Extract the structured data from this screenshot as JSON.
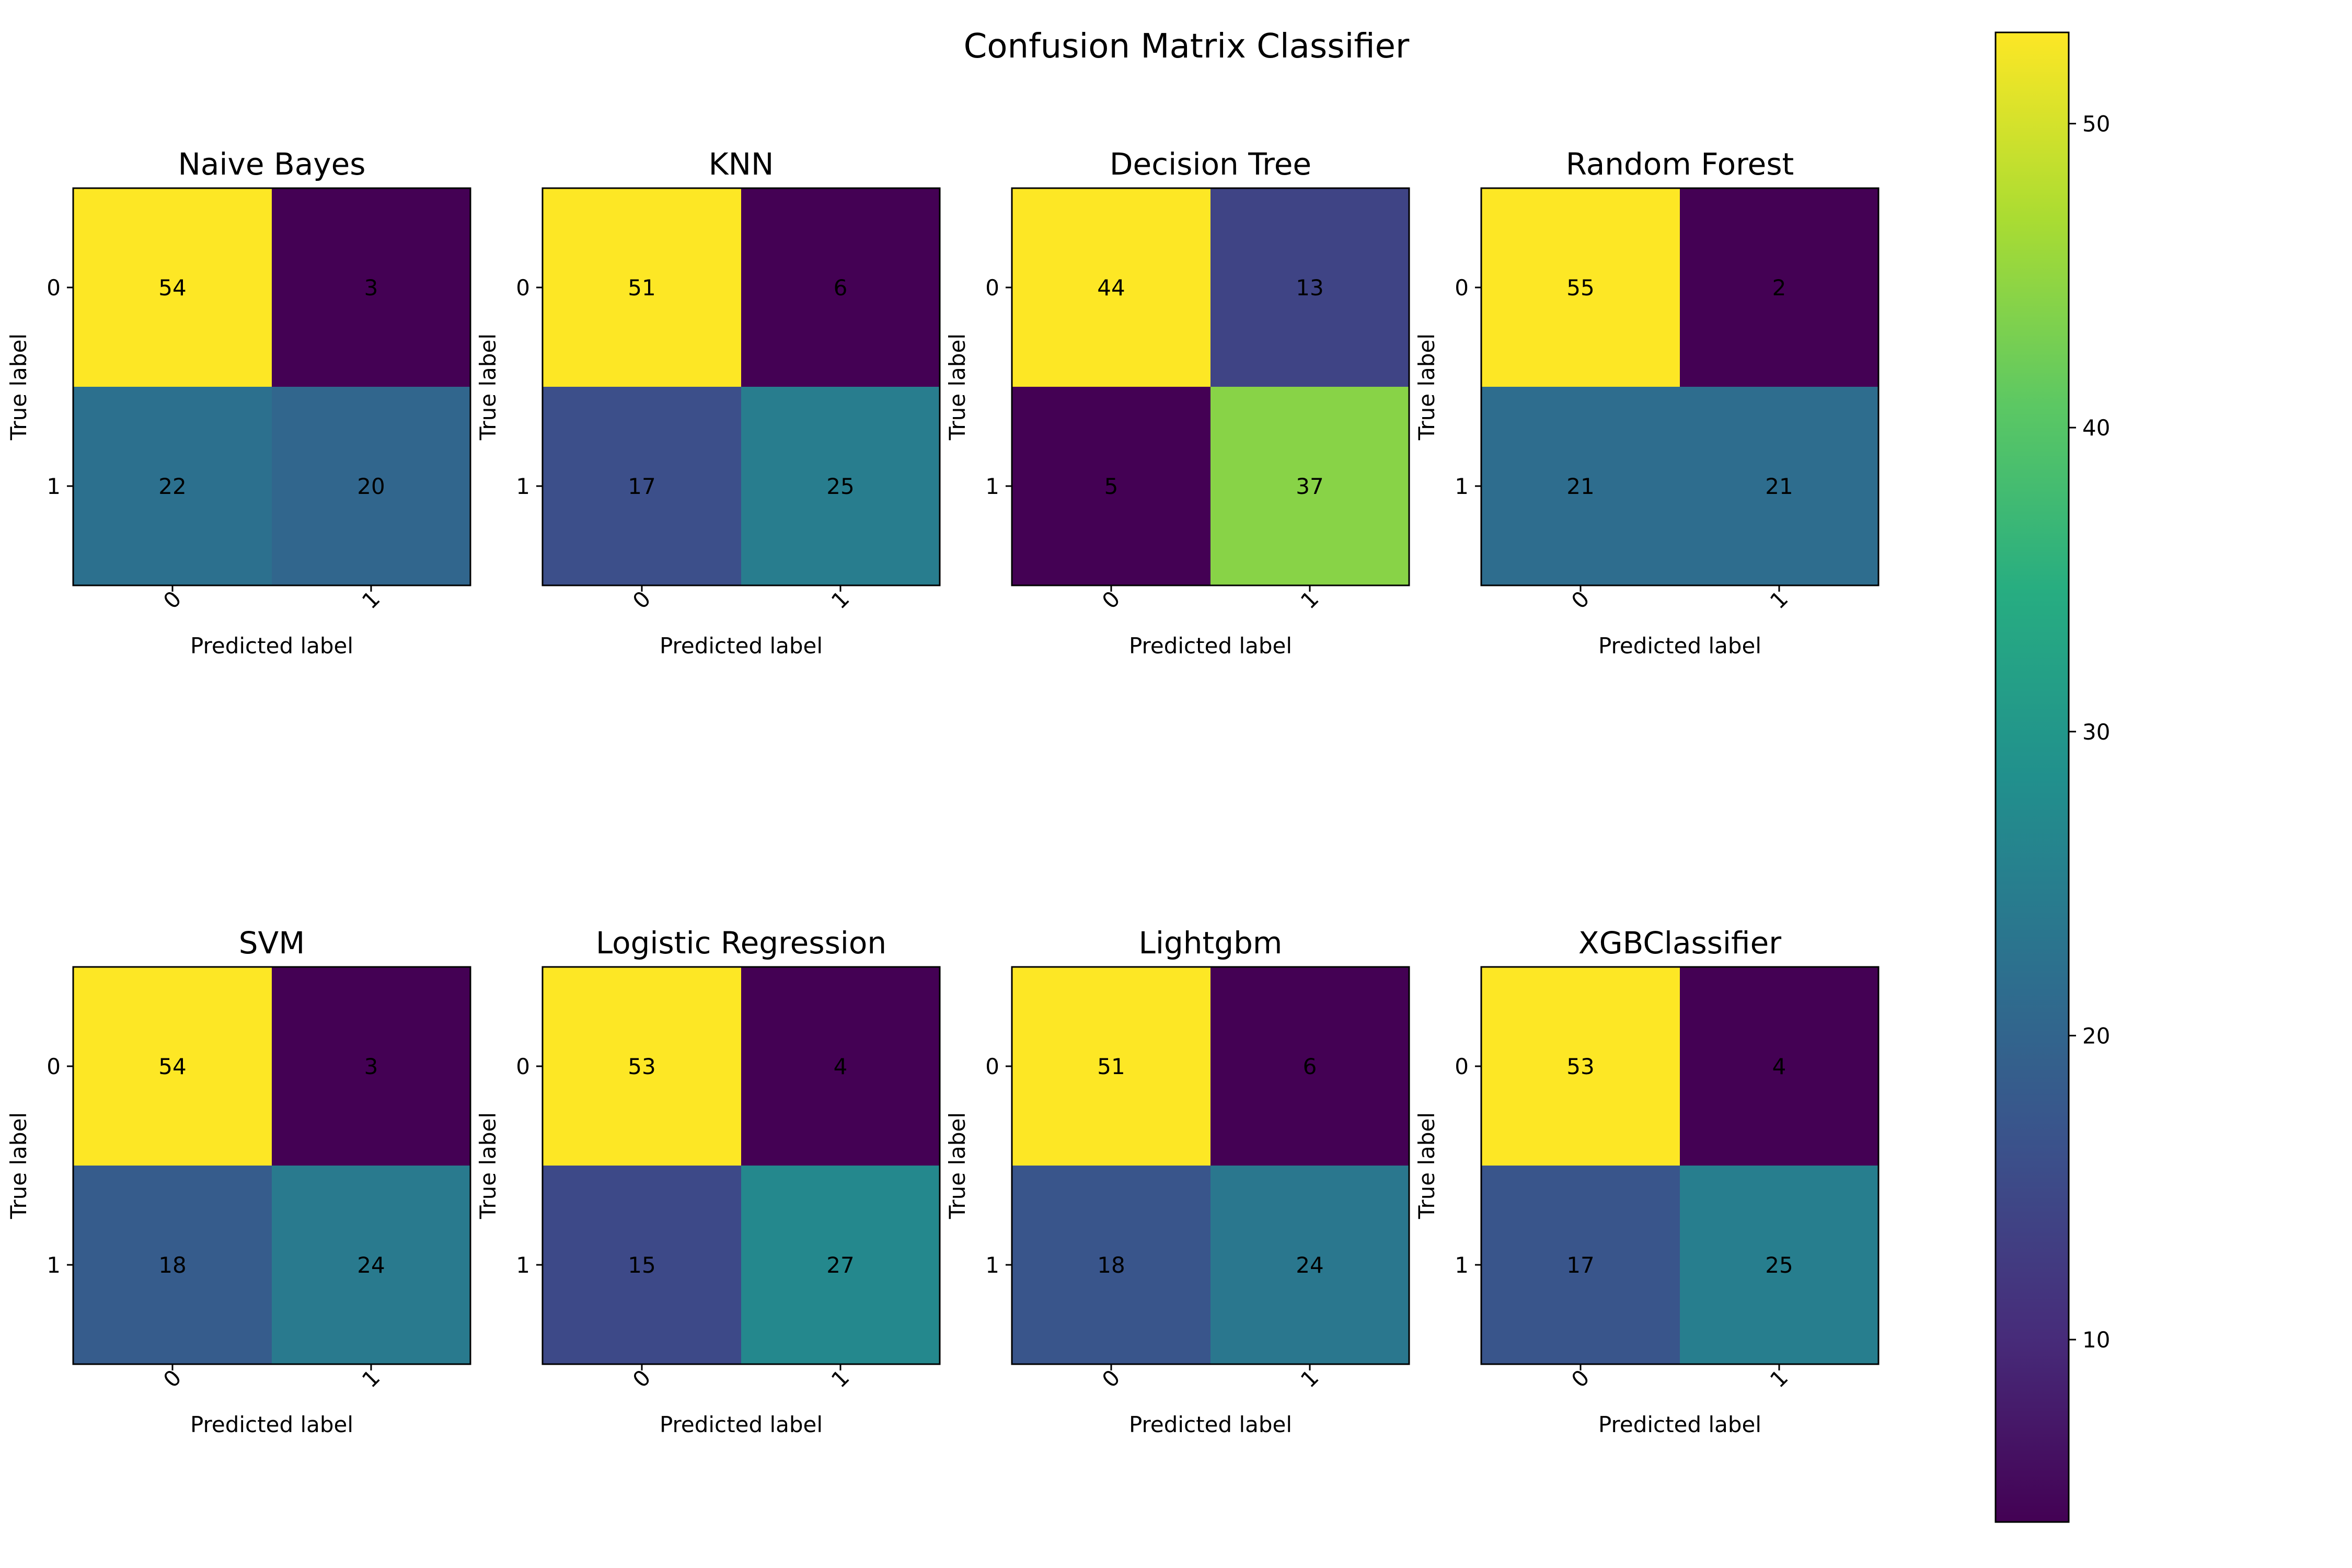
{
  "figure": {
    "title": "Confusion Matrix Classifier"
  },
  "chart_data": [
    {
      "type": "heatmap",
      "title": "Naive Bayes",
      "xlabel": "Predicted label",
      "ylabel": "True label",
      "x_categories": [
        "0",
        "1"
      ],
      "y_categories": [
        "0",
        "1"
      ],
      "values": [
        [
          54,
          3
        ],
        [
          22,
          20
        ]
      ],
      "colormap": "viridis"
    },
    {
      "type": "heatmap",
      "title": "KNN",
      "xlabel": "Predicted label",
      "ylabel": "True label",
      "x_categories": [
        "0",
        "1"
      ],
      "y_categories": [
        "0",
        "1"
      ],
      "values": [
        [
          51,
          6
        ],
        [
          17,
          25
        ]
      ],
      "colormap": "viridis"
    },
    {
      "type": "heatmap",
      "title": "Decision Tree",
      "xlabel": "Predicted label",
      "ylabel": "True label",
      "x_categories": [
        "0",
        "1"
      ],
      "y_categories": [
        "0",
        "1"
      ],
      "values": [
        [
          44,
          13
        ],
        [
          5,
          37
        ]
      ],
      "colormap": "viridis"
    },
    {
      "type": "heatmap",
      "title": "Random Forest",
      "xlabel": "Predicted label",
      "ylabel": "True label",
      "x_categories": [
        "0",
        "1"
      ],
      "y_categories": [
        "0",
        "1"
      ],
      "values": [
        [
          55,
          2
        ],
        [
          21,
          21
        ]
      ],
      "colormap": "viridis"
    },
    {
      "type": "heatmap",
      "title": "SVM",
      "xlabel": "Predicted label",
      "ylabel": "True label",
      "x_categories": [
        "0",
        "1"
      ],
      "y_categories": [
        "0",
        "1"
      ],
      "values": [
        [
          54,
          3
        ],
        [
          18,
          24
        ]
      ],
      "colormap": "viridis"
    },
    {
      "type": "heatmap",
      "title": "Logistic Regression",
      "xlabel": "Predicted label",
      "ylabel": "True label",
      "x_categories": [
        "0",
        "1"
      ],
      "y_categories": [
        "0",
        "1"
      ],
      "values": [
        [
          53,
          4
        ],
        [
          15,
          27
        ]
      ],
      "colormap": "viridis"
    },
    {
      "type": "heatmap",
      "title": "Lightgbm",
      "xlabel": "Predicted label",
      "ylabel": "True label",
      "x_categories": [
        "0",
        "1"
      ],
      "y_categories": [
        "0",
        "1"
      ],
      "values": [
        [
          51,
          6
        ],
        [
          18,
          24
        ]
      ],
      "colormap": "viridis"
    },
    {
      "type": "heatmap",
      "title": "XGBClassifier",
      "xlabel": "Predicted label",
      "ylabel": "True label",
      "x_categories": [
        "0",
        "1"
      ],
      "y_categories": [
        "0",
        "1"
      ],
      "values": [
        [
          53,
          4
        ],
        [
          17,
          25
        ]
      ],
      "colormap": "viridis"
    }
  ],
  "colorbar": {
    "colormap": "viridis",
    "range": [
      4,
      53
    ],
    "ticks": [
      "10",
      "20",
      "30",
      "40",
      "50"
    ]
  },
  "colors": {
    "text_on_dark": "#fde725",
    "text_on_light": "#440154"
  }
}
